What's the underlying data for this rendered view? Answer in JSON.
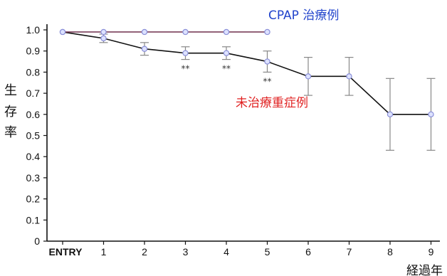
{
  "chart_data": {
    "type": "line",
    "title": "",
    "xlabel": "経過年",
    "ylabel": "生存率",
    "ylabel_chars": [
      "生",
      "存",
      "率"
    ],
    "categories": [
      "ENTRY",
      "1",
      "2",
      "3",
      "4",
      "5",
      "6",
      "7",
      "8",
      "9"
    ],
    "ylim": [
      0,
      1.0
    ],
    "yticks": [
      "0",
      "0.1",
      "0.2",
      "0.3",
      "0.4",
      "0.5",
      "0.6",
      "0.7",
      "0.8",
      "0.9",
      "1.0"
    ],
    "grid": false,
    "series": [
      {
        "name": "CPAP 治療例",
        "color": "#7a3e5a",
        "label_color": "#2244cc",
        "x": [
          0,
          1,
          2,
          3,
          4,
          5
        ],
        "values": [
          0.99,
          0.99,
          0.99,
          0.99,
          0.99,
          0.99
        ],
        "err": [
          0,
          0,
          0,
          0,
          0,
          0
        ]
      },
      {
        "name": "未治療重症例",
        "color": "#111111",
        "label_color": "#e02020",
        "x": [
          0,
          1,
          2,
          3,
          4,
          5,
          6,
          7,
          8,
          9
        ],
        "values": [
          0.99,
          0.96,
          0.91,
          0.89,
          0.89,
          0.85,
          0.78,
          0.78,
          0.6,
          0.6
        ],
        "err": [
          0,
          0.02,
          0.03,
          0.03,
          0.03,
          0.05,
          0.09,
          0.09,
          0.17,
          0.17
        ]
      }
    ],
    "annotations": [
      {
        "x": 3,
        "text": "**"
      },
      {
        "x": 4,
        "text": "**"
      },
      {
        "x": 5,
        "text": "**"
      }
    ]
  }
}
